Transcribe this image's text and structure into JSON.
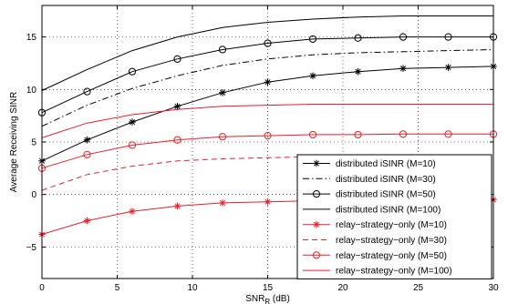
{
  "chart_data": {
    "type": "line",
    "title": "",
    "xlabel": "SNR",
    "xlabel_subscript": "R",
    "xlabel_suffix": " (dB)",
    "ylabel": "Average Receiving SINR",
    "xlim": [
      0,
      30
    ],
    "ylim": [
      -8,
      18
    ],
    "xticks": [
      0,
      5,
      10,
      15,
      20,
      25,
      30
    ],
    "yticks": [
      -5,
      0,
      5,
      10,
      15
    ],
    "grid": true,
    "legend_position": "bottom-right",
    "x": [
      0,
      3,
      6,
      9,
      12,
      15,
      18,
      21,
      24,
      27,
      30
    ],
    "series": [
      {
        "name": "distributed iSINR (M=10)",
        "color": "#000000",
        "dash": "solid",
        "marker": "star",
        "values": [
          3.2,
          5.2,
          6.9,
          8.4,
          9.7,
          10.7,
          11.3,
          11.7,
          12.0,
          12.1,
          12.2
        ]
      },
      {
        "name": "distributed iSINR (M=30)",
        "color": "#000000",
        "dash": "dashdot",
        "marker": "none",
        "values": [
          6.5,
          8.5,
          10.1,
          11.3,
          12.3,
          12.9,
          13.3,
          13.5,
          13.6,
          13.7,
          13.8
        ]
      },
      {
        "name": "distributed iSINR (M=50)",
        "color": "#000000",
        "dash": "solid",
        "marker": "circle",
        "values": [
          7.8,
          9.8,
          11.7,
          12.9,
          13.8,
          14.4,
          14.8,
          14.9,
          15.0,
          15.0,
          15.0
        ]
      },
      {
        "name": "distributed iSINR (M=100)",
        "color": "#000000",
        "dash": "solid",
        "marker": "none",
        "values": [
          9.9,
          11.9,
          13.7,
          15.0,
          15.9,
          16.4,
          16.7,
          16.9,
          17.0,
          17.0,
          17.0
        ]
      },
      {
        "name": "relay−strategy−only (M=10)",
        "color": "#e8202a",
        "dash": "solid",
        "marker": "star",
        "values": [
          -3.8,
          -2.5,
          -1.6,
          -1.1,
          -0.8,
          -0.7,
          -0.6,
          -0.55,
          -0.5,
          -0.5,
          -0.5
        ]
      },
      {
        "name": "relay−strategy−only (M=30)",
        "color": "#e8202a",
        "dash": "dashed",
        "marker": "none",
        "values": [
          0.4,
          1.9,
          2.7,
          3.2,
          3.4,
          3.5,
          3.6,
          3.6,
          3.6,
          3.6,
          3.6
        ]
      },
      {
        "name": "relay−strategy−only (M=50)",
        "color": "#e8202a",
        "dash": "solid",
        "marker": "circle",
        "values": [
          2.5,
          3.8,
          4.7,
          5.2,
          5.5,
          5.6,
          5.7,
          5.7,
          5.75,
          5.75,
          5.75
        ]
      },
      {
        "name": "relay−strategy−only (M=100)",
        "color": "#e8202a",
        "dash": "solid",
        "marker": "none",
        "values": [
          5.4,
          6.8,
          7.6,
          8.1,
          8.4,
          8.5,
          8.6,
          8.6,
          8.6,
          8.6,
          8.6
        ]
      }
    ]
  }
}
